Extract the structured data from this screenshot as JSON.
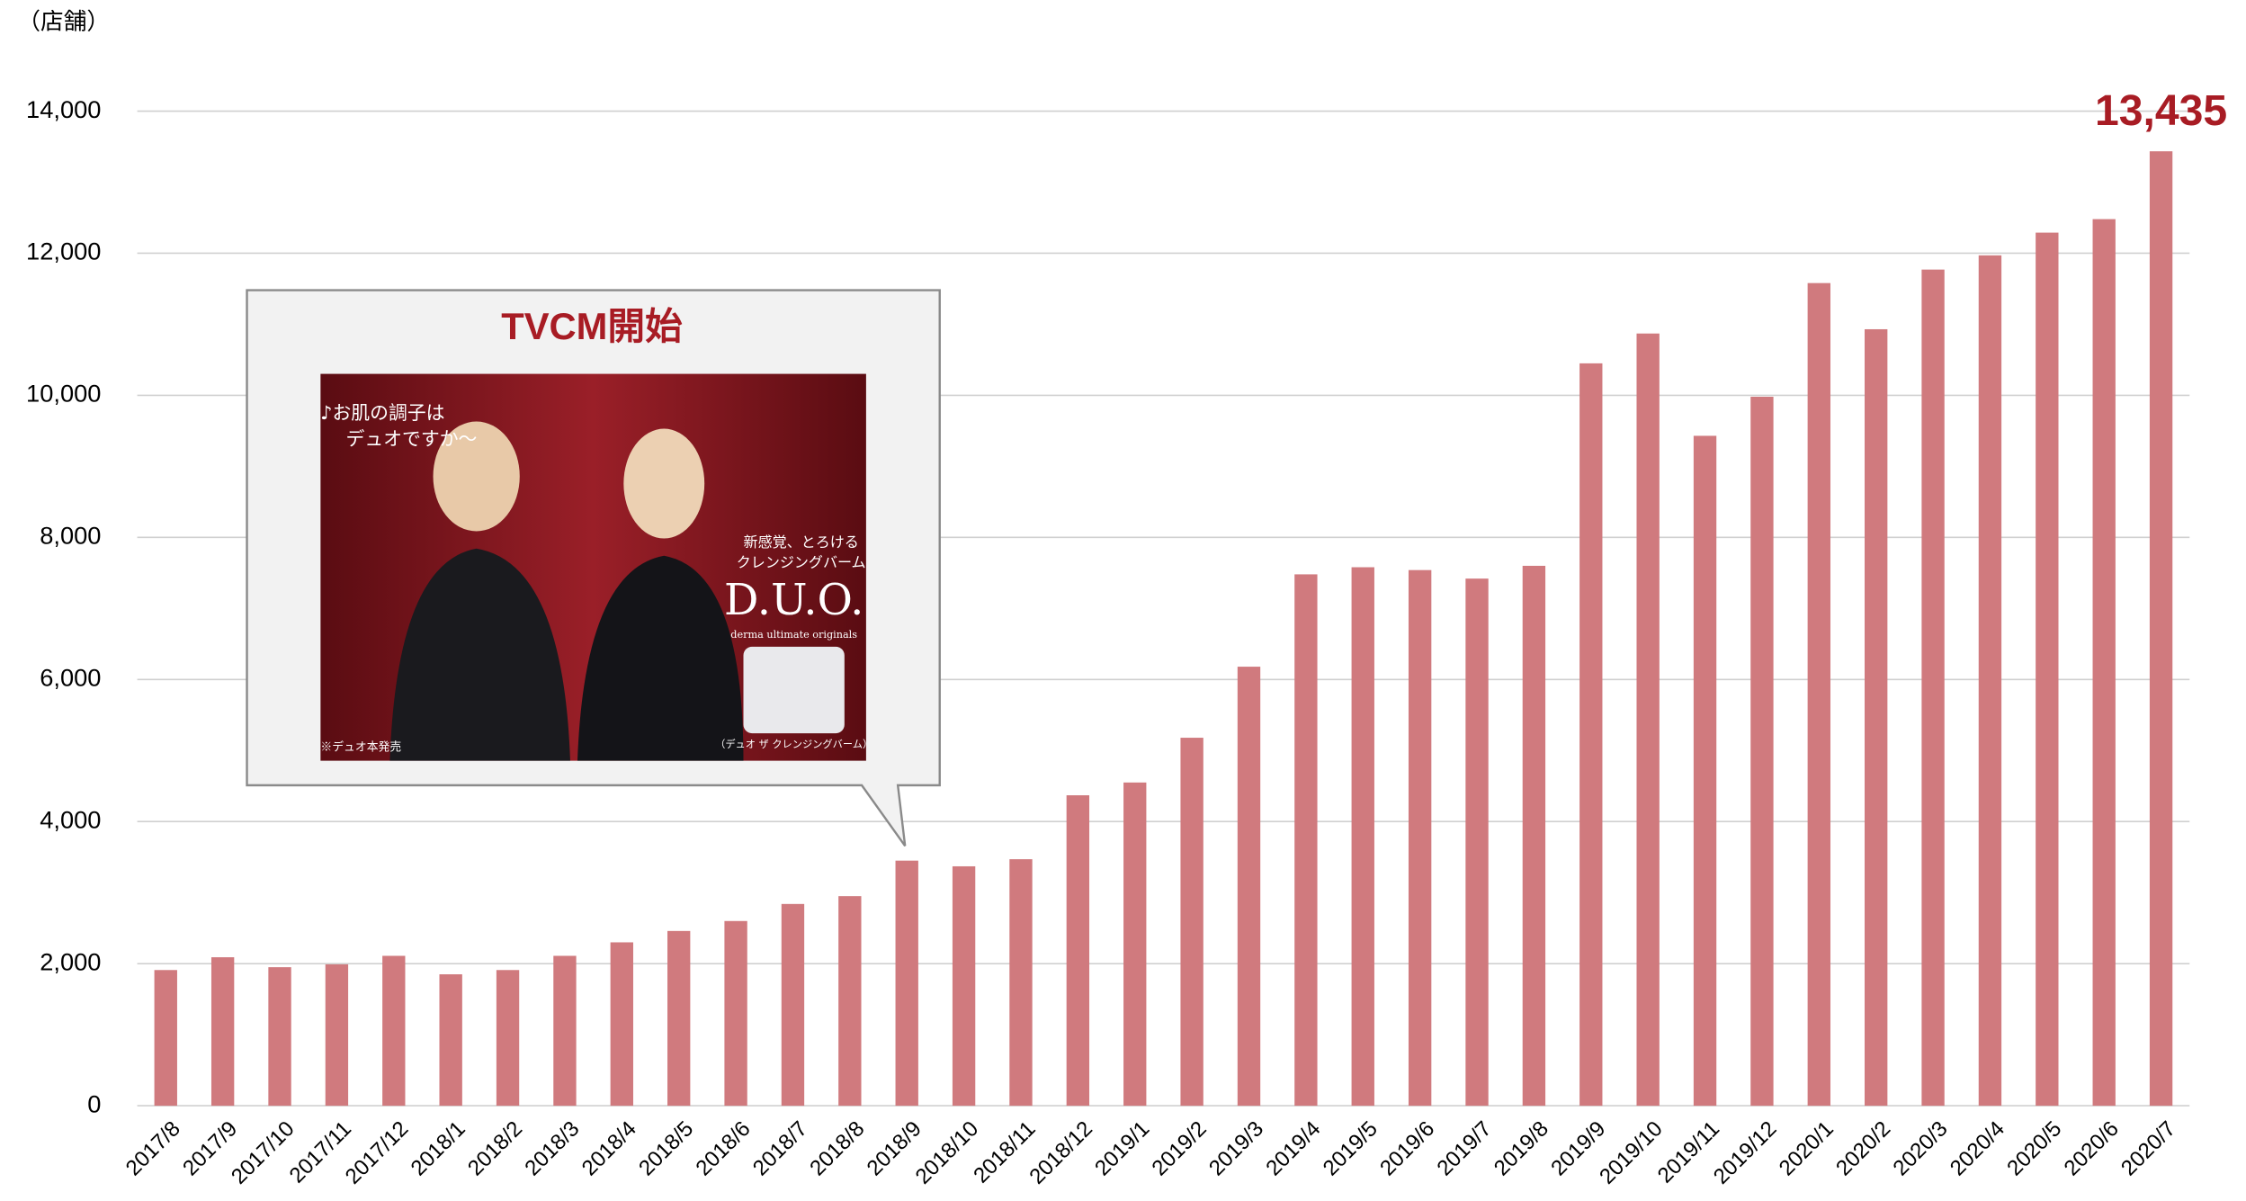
{
  "chart_data": {
    "type": "bar",
    "unit_label": "（店舗）",
    "categories": [
      "2017/8",
      "2017/9",
      "2017/10",
      "2017/11",
      "2017/12",
      "2018/1",
      "2018/2",
      "2018/3",
      "2018/4",
      "2018/5",
      "2018/6",
      "2018/7",
      "2018/8",
      "2018/9",
      "2018/10",
      "2018/11",
      "2018/12",
      "2019/1",
      "2019/2",
      "2019/3",
      "2019/4",
      "2019/5",
      "2019/6",
      "2019/7",
      "2019/8",
      "2019/9",
      "2019/10",
      "2019/11",
      "2019/12",
      "2020/1",
      "2020/2",
      "2020/3",
      "2020/4",
      "2020/5",
      "2020/6",
      "2020/7"
    ],
    "values": [
      1910,
      2090,
      1950,
      1990,
      2110,
      1850,
      1910,
      2110,
      2300,
      2460,
      2600,
      2840,
      2950,
      3450,
      3370,
      3470,
      4370,
      4550,
      5180,
      6180,
      7480,
      7580,
      7540,
      7420,
      7600,
      10450,
      10870,
      9430,
      9980,
      11580,
      10930,
      11770,
      11970,
      12290,
      12480,
      13435
    ],
    "value_labels": [
      null,
      null,
      null,
      null,
      null,
      null,
      null,
      null,
      null,
      null,
      null,
      null,
      null,
      null,
      null,
      null,
      null,
      null,
      null,
      null,
      null,
      null,
      null,
      null,
      null,
      null,
      null,
      null,
      null,
      null,
      null,
      null,
      null,
      null,
      null,
      "13,435"
    ],
    "color": "#d07a7e",
    "value_label_color": "#a81c24",
    "ylim": [
      0,
      14000
    ],
    "yticks": [
      0,
      {
        "value": 2000,
        "label": "2,000"
      },
      {
        "value": 4000,
        "label": "4,000"
      },
      {
        "value": 6000,
        "label": "6,000"
      },
      {
        "value": 8000,
        "label": "8,000"
      },
      {
        "value": 10000,
        "label": "10,000"
      },
      {
        "value": 12000,
        "label": "12,000"
      },
      {
        "value": 14000,
        "label": "14,000"
      }
    ],
    "grid": true,
    "annotation": {
      "text": "TVCM開始",
      "category": "2018/9",
      "image_texts": [
        "♪お肌の調子は",
        "デュオですか〜",
        "新感覚、とろける",
        "クレンジングバーム",
        "D.U.O.",
        "derma ultimate originals",
        "※デュオ本発売",
        "（デュオ ザ クレンジングバーム）"
      ]
    }
  }
}
